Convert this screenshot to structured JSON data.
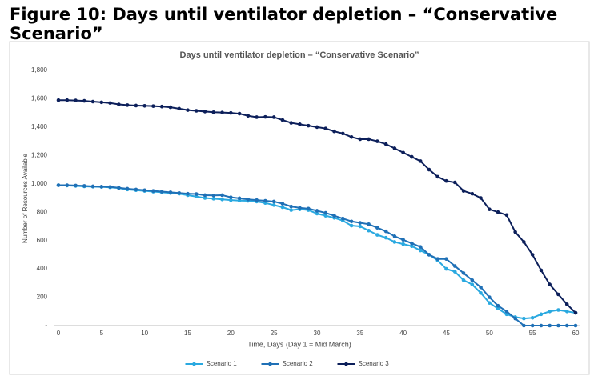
{
  "heading": "Figure 10: Days until ventilator depletion – “Conservative Scenario”",
  "chart_data": {
    "type": "line",
    "title": "Days until ventilator depletion – “Conservative Scenario”",
    "x_label": "Time, Days (Day 1 = Mid March)",
    "y_label": "Number of Resources Available",
    "x": [
      0,
      1,
      2,
      3,
      4,
      5,
      6,
      7,
      8,
      9,
      10,
      11,
      12,
      13,
      14,
      15,
      16,
      17,
      18,
      19,
      20,
      21,
      22,
      23,
      24,
      25,
      26,
      27,
      28,
      29,
      30,
      31,
      32,
      33,
      34,
      35,
      36,
      37,
      38,
      39,
      40,
      41,
      42,
      43,
      44,
      45,
      46,
      47,
      48,
      49,
      50,
      51,
      52,
      53,
      54,
      55,
      56,
      57,
      58,
      59,
      60
    ],
    "series": [
      {
        "name": "Scenario 1",
        "color": "#2aa9e0",
        "values": [
          990,
          988,
          985,
          982,
          980,
          978,
          975,
          970,
          960,
          955,
          950,
          945,
          940,
          935,
          930,
          920,
          910,
          900,
          895,
          890,
          885,
          882,
          880,
          875,
          865,
          850,
          835,
          815,
          820,
          815,
          790,
          775,
          760,
          740,
          705,
          700,
          670,
          640,
          620,
          590,
          575,
          560,
          530,
          500,
          460,
          400,
          380,
          320,
          290,
          230,
          160,
          120,
          80,
          60,
          50,
          55,
          80,
          100,
          110,
          100,
          90
        ]
      },
      {
        "name": "Scenario 2",
        "color": "#1f70b6",
        "values": [
          990,
          990,
          988,
          985,
          982,
          980,
          978,
          972,
          965,
          960,
          955,
          950,
          945,
          940,
          935,
          930,
          928,
          920,
          918,
          920,
          905,
          898,
          890,
          885,
          880,
          875,
          860,
          840,
          830,
          825,
          810,
          795,
          775,
          755,
          735,
          725,
          715,
          690,
          665,
          630,
          605,
          580,
          555,
          500,
          470,
          470,
          420,
          370,
          320,
          270,
          200,
          140,
          100,
          50,
          0,
          0,
          0,
          0,
          0,
          0,
          0
        ]
      },
      {
        "name": "Scenario 3",
        "color": "#0c1f5a",
        "values": [
          1590,
          1590,
          1588,
          1585,
          1580,
          1575,
          1570,
          1560,
          1555,
          1552,
          1550,
          1548,
          1545,
          1540,
          1530,
          1520,
          1515,
          1510,
          1505,
          1503,
          1500,
          1495,
          1480,
          1470,
          1472,
          1470,
          1450,
          1430,
          1420,
          1410,
          1400,
          1390,
          1370,
          1355,
          1330,
          1315,
          1315,
          1300,
          1280,
          1250,
          1220,
          1190,
          1160,
          1100,
          1050,
          1020,
          1010,
          950,
          930,
          900,
          820,
          800,
          780,
          660,
          590,
          500,
          390,
          290,
          220,
          150,
          90
        ]
      }
    ],
    "xlim": [
      0,
      60
    ],
    "xticks": [
      0,
      5,
      10,
      15,
      20,
      25,
      30,
      35,
      40,
      45,
      50,
      55,
      60
    ],
    "ylim": [
      0,
      1800
    ],
    "yticks": [
      {
        "value": 0,
        "label": "-"
      },
      200,
      400,
      600,
      800,
      {
        "value": 1000,
        "label": "1,000"
      },
      {
        "value": 1200,
        "label": "1,200"
      },
      {
        "value": 1400,
        "label": "1,400"
      },
      {
        "value": 1600,
        "label": "1,600"
      },
      {
        "value": 1800,
        "label": "1,800"
      }
    ],
    "grid": false,
    "legend": "bottom"
  }
}
